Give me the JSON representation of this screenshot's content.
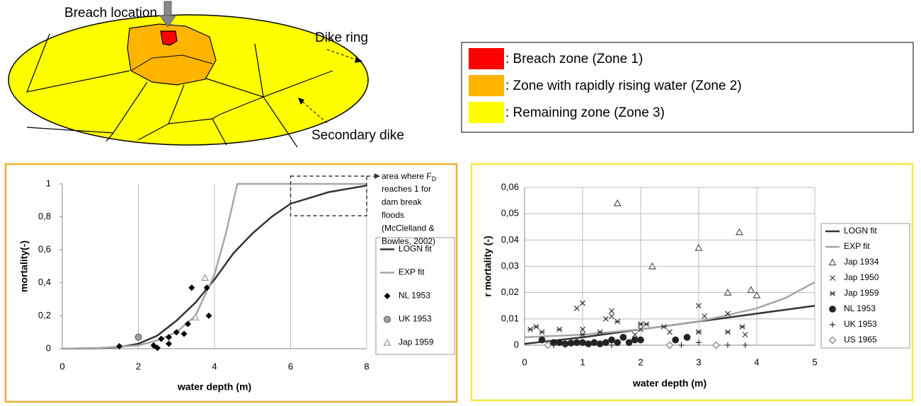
{
  "diagram": {
    "breach_label": "Breach location",
    "dike_ring_label": "Dike ring",
    "secondary_dike_label": "Secondary dike",
    "legend": [
      {
        "label": ":  Breach zone (Zone 1)",
        "color": "#ff0000"
      },
      {
        "label": ":  Zone with rapidly rising water (Zone 2)",
        "color": "#ffb400"
      },
      {
        "label": ":  Remaining zone (Zone 3)",
        "color": "#ffff00"
      }
    ]
  },
  "chart_data": [
    {
      "type": "scatter",
      "xlabel": "water depth (m)",
      "ylabel": "mortality(-)",
      "xlim": [
        0,
        8
      ],
      "ylim": [
        0,
        1
      ],
      "xticks": [
        0,
        2,
        4,
        6,
        8
      ],
      "yticks": [
        0,
        {
          "value": 0.2,
          "label": "0,2"
        },
        {
          "value": 0.4,
          "label": "0,4"
        },
        {
          "value": 0.6,
          "label": "0,6"
        },
        {
          "value": 0.8,
          "label": "0,8"
        },
        1
      ],
      "grid": "x",
      "annotation": {
        "prefix": "area where F",
        "subscript": "D",
        "lines": [
          "reaches 1 for",
          "dam break",
          "floods",
          "(McClelland &",
          "Bowles, 2002)"
        ]
      },
      "series": [
        {
          "name": "LOGN fit",
          "color": "#333333",
          "mode": "line",
          "x": [
            0,
            1,
            1.5,
            2,
            2.5,
            3,
            3.5,
            4,
            4.5,
            5,
            5.5,
            6,
            7,
            8
          ],
          "values": [
            0,
            0.003,
            0.01,
            0.03,
            0.08,
            0.17,
            0.28,
            0.42,
            0.58,
            0.7,
            0.8,
            0.88,
            0.95,
            0.99
          ]
        },
        {
          "name": "EXP fit",
          "color": "#a6a6a6",
          "mode": "line",
          "x": [
            0,
            1,
            2,
            2.5,
            3,
            3.5,
            4,
            4.3,
            4.6,
            8
          ],
          "values": [
            0,
            0.005,
            0.02,
            0.05,
            0.1,
            0.2,
            0.45,
            0.7,
            1,
            1
          ]
        },
        {
          "name": "NL 1953",
          "color": "#000000",
          "marker": "diamond",
          "x": [
            1.5,
            2.4,
            2.5,
            2.6,
            2.8,
            2.8,
            3,
            3.2,
            3.3,
            3.4,
            3.8,
            3.85
          ],
          "values": [
            0.015,
            0.02,
            0.005,
            0.06,
            0.03,
            0.07,
            0.1,
            0.09,
            0.15,
            0.37,
            0.37,
            0.2
          ]
        },
        {
          "name": "UK 1953",
          "color": "#a0a0a0",
          "marker": "circle",
          "x": [
            2
          ],
          "values": [
            0.07
          ]
        },
        {
          "name": "Jap 1959",
          "color": "#999999",
          "marker": "triangle",
          "x": [
            3.5,
            3.75
          ],
          "values": [
            0.19,
            0.43
          ]
        }
      ]
    },
    {
      "type": "scatter",
      "xlabel": "water depth (m)",
      "ylabel": "r mortality (-)",
      "xlim": [
        0,
        5
      ],
      "ylim": [
        0,
        0.06
      ],
      "xticks": [
        0,
        1,
        2,
        3,
        4,
        5
      ],
      "yticks": [
        0,
        {
          "value": 0.01,
          "label": "0,01"
        },
        {
          "value": 0.02,
          "label": "0,02"
        },
        {
          "value": 0.03,
          "label": "0,03"
        },
        {
          "value": 0.04,
          "label": "0,04"
        },
        {
          "value": 0.05,
          "label": "0,05"
        },
        {
          "value": 0.06,
          "label": "0,06"
        }
      ],
      "grid": "both",
      "series": [
        {
          "name": "LOGN fit",
          "color": "#333333",
          "mode": "line",
          "x": [
            0,
            1,
            2,
            3,
            4,
            5
          ],
          "values": [
            0.0005,
            0.003,
            0.006,
            0.009,
            0.012,
            0.015
          ]
        },
        {
          "name": "EXP fit",
          "color": "#a6a6a6",
          "mode": "line",
          "x": [
            0,
            1,
            2,
            3,
            4,
            4.5,
            5
          ],
          "values": [
            0.003,
            0.004,
            0.006,
            0.009,
            0.014,
            0.018,
            0.024
          ]
        },
        {
          "name": "Jap 1934",
          "color": "#555555",
          "marker": "triangle",
          "x": [
            1.6,
            2.2,
            3,
            3.5,
            3.7,
            3.9,
            4
          ],
          "values": [
            0.054,
            0.03,
            0.037,
            0.02,
            0.043,
            0.021,
            0.019
          ]
        },
        {
          "name": "Jap 1950",
          "color": "#333333",
          "marker": "x",
          "x": [
            0.9,
            1,
            1,
            1.4,
            1.5,
            1.5,
            1.9,
            2,
            2.5,
            3,
            3,
            3.1,
            3.5,
            3.8
          ],
          "values": [
            0.014,
            0.016,
            0.006,
            0.01,
            0.013,
            0.011,
            0.004,
            0.006,
            0.005,
            0.015,
            0.005,
            0.011,
            0.012,
            0.004
          ]
        },
        {
          "name": "Jap 1959",
          "color": "#333333",
          "marker": "asterisk",
          "x": [
            0.1,
            0.2,
            0.3,
            0.6,
            1,
            1.3,
            1.6,
            2,
            2.1,
            2.4,
            3,
            3.5,
            3.75
          ],
          "values": [
            0.006,
            0.007,
            0.005,
            0.006,
            0.004,
            0.005,
            0.009,
            0.008,
            0.008,
            0.007,
            0.005,
            0.005,
            0.007
          ]
        },
        {
          "name": "NL 1953",
          "color": "#222222",
          "marker": "circle",
          "x": [
            0.3,
            0.5,
            0.6,
            0.7,
            0.8,
            0.9,
            1,
            1.1,
            1.2,
            1.3,
            1.4,
            1.5,
            1.6,
            1.7,
            1.8,
            1.9,
            2,
            2.6,
            2.8
          ],
          "values": [
            0.002,
            0.001,
            0.001,
            0.0005,
            0.0008,
            0.001,
            0.001,
            0.0005,
            0.001,
            0.0005,
            0.001,
            0.002,
            0.001,
            0.003,
            0.001,
            0.002,
            0.002,
            0.002,
            0.003
          ]
        },
        {
          "name": "UK 1953",
          "color": "#333333",
          "marker": "plus",
          "x": [
            0.5,
            0.7,
            1.5,
            2.7,
            3,
            3.5,
            3.8
          ],
          "values": [
            0,
            0,
            0,
            0,
            0.001,
            0,
            0
          ]
        },
        {
          "name": "US 1965",
          "color": "#777777",
          "marker": "diamond-open",
          "x": [
            0.4,
            2.5,
            3.3
          ],
          "values": [
            0,
            0,
            0
          ]
        }
      ]
    }
  ]
}
